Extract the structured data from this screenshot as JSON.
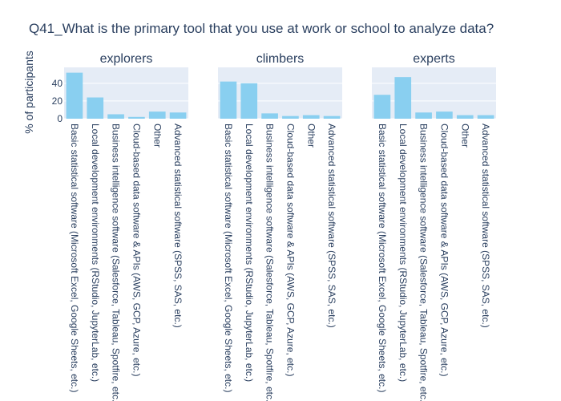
{
  "chart_data": {
    "type": "bar",
    "title": "Q41_What is the primary tool that you use at work or school to analyze data?",
    "ylabel": "% of participants",
    "xlabel": "",
    "ylim": [
      0,
      58
    ],
    "yticks": [
      0,
      20,
      40
    ],
    "grid": true,
    "bar_color": "#89cff0",
    "plot_bg_color": "#e5ecf6",
    "categories": [
      "Basic statistical software (Microsoft Excel, Google Sheets, etc.)",
      "Local development environments (RStudio, JupyterLab, etc.)",
      "Business intelligence software (Salesforce, Tableau, Spotfire, etc.)",
      "Cloud-based data software & APIs (AWS, GCP, Azure, etc.)",
      "Other",
      "Advanced statistical software (SPSS, SAS, etc.)"
    ],
    "facets": [
      {
        "title": "explorers",
        "values": [
          52,
          24,
          5,
          2,
          8,
          7
        ]
      },
      {
        "title": "climbers",
        "values": [
          42,
          40,
          6,
          3,
          4,
          3
        ]
      },
      {
        "title": "experts",
        "values": [
          27,
          47,
          7,
          8,
          4,
          4
        ]
      }
    ]
  }
}
